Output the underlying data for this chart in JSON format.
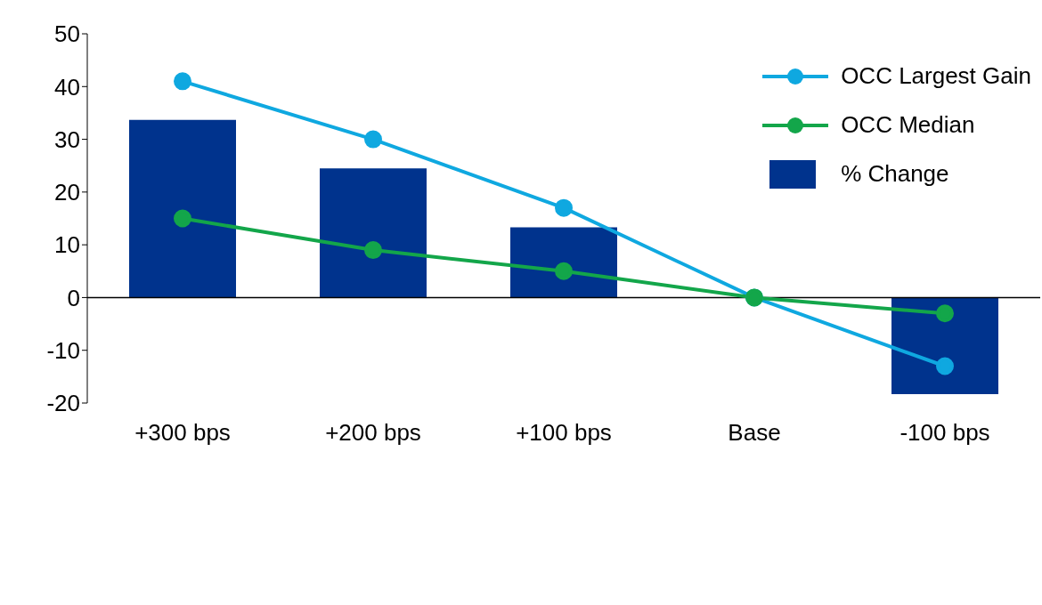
{
  "chart_data": {
    "type": "bar",
    "categories": [
      "+300 bps",
      "+200 bps",
      "+100 bps",
      "Base",
      "-100 bps"
    ],
    "series": [
      {
        "name": "OCC Largest Gain",
        "type": "line",
        "color": "#0fa8e0",
        "values": [
          41,
          30,
          17,
          0,
          -13
        ]
      },
      {
        "name": "OCC Median",
        "type": "line",
        "color": "#13a64a",
        "values": [
          15,
          9,
          5,
          0,
          -3
        ]
      },
      {
        "name": "% Change",
        "color": "#00338d",
        "values": [
          33.7,
          24.5,
          13.3,
          null,
          -18.3
        ]
      }
    ],
    "ylim": [
      -20,
      50
    ],
    "yticks": [
      -20,
      -10,
      0,
      10,
      20,
      30,
      40,
      50
    ],
    "ref_lines": [
      {
        "axis": "y",
        "value": 0
      }
    ],
    "marker": "circle",
    "legend": "top right"
  }
}
